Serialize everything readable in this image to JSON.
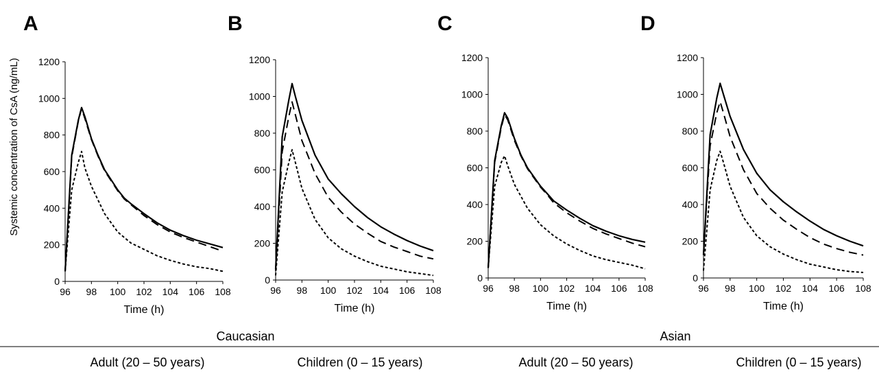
{
  "footer": {
    "group_left": "Caucasian",
    "group_right": "Asian",
    "subgroups": [
      "Adult  (20 – 50 years)",
      "Children  (0 – 15 years)",
      "Adult  (20 – 50 years)",
      "Children  (0 – 15 years)"
    ]
  },
  "chart_data": [
    {
      "type": "line",
      "panel_label": "A",
      "xlabel": "Time (h)",
      "ylabel": "Systemic concentration of CsA (ng/mL)",
      "xlim": [
        96,
        108
      ],
      "ylim": [
        0,
        1200
      ],
      "xticks": [
        "96",
        "98",
        "100",
        "102",
        "104",
        "106",
        "108"
      ],
      "yticks": [
        "0",
        "200",
        "400",
        "600",
        "800",
        "1000",
        "1200"
      ],
      "series": [
        {
          "style": "solid",
          "x": [
            96,
            96.5,
            97,
            97.25,
            97.5,
            98,
            98.5,
            99,
            100,
            100.5,
            101,
            102,
            103,
            104,
            105,
            106,
            107,
            108
          ],
          "y": [
            55,
            690,
            880,
            950,
            900,
            780,
            690,
            610,
            500,
            455,
            425,
            370,
            320,
            280,
            250,
            225,
            205,
            185
          ]
        },
        {
          "style": "long-dash",
          "x": [
            96,
            96.5,
            97,
            97.25,
            97.5,
            98,
            98.5,
            99,
            100,
            100.5,
            101,
            102,
            103,
            104,
            105,
            106,
            107,
            108
          ],
          "y": [
            55,
            680,
            875,
            945,
            890,
            775,
            685,
            605,
            495,
            450,
            420,
            360,
            310,
            270,
            240,
            215,
            190,
            165
          ]
        },
        {
          "style": "short-dash",
          "x": [
            96,
            96.5,
            97,
            97.25,
            97.5,
            98,
            99,
            100,
            101,
            102,
            103,
            104,
            105,
            106,
            107,
            108
          ],
          "y": [
            55,
            500,
            650,
            710,
            620,
            520,
            370,
            270,
            210,
            175,
            140,
            115,
            95,
            80,
            70,
            55
          ]
        }
      ]
    },
    {
      "type": "line",
      "panel_label": "B",
      "xlabel": "Time (h)",
      "xlim": [
        96,
        108
      ],
      "ylim": [
        0,
        1200
      ],
      "xticks": [
        "96",
        "98",
        "100",
        "102",
        "104",
        "106",
        "108"
      ],
      "yticks": [
        "0",
        "200",
        "400",
        "600",
        "800",
        "1000",
        "1200"
      ],
      "series": [
        {
          "style": "solid",
          "x": [
            96,
            96.5,
            97,
            97.25,
            97.5,
            98,
            99,
            100,
            101,
            102,
            103,
            104,
            105,
            106,
            107,
            108
          ],
          "y": [
            60,
            780,
            980,
            1070,
            1000,
            870,
            680,
            550,
            470,
            400,
            340,
            290,
            250,
            215,
            185,
            160
          ]
        },
        {
          "style": "long-dash",
          "x": [
            96,
            96.5,
            97,
            97.25,
            97.5,
            98,
            99,
            100,
            101,
            102,
            103,
            104,
            105,
            106,
            107,
            108
          ],
          "y": [
            50,
            700,
            890,
            970,
            900,
            760,
            580,
            450,
            370,
            305,
            255,
            210,
            180,
            155,
            130,
            115
          ]
        },
        {
          "style": "short-dash",
          "x": [
            96,
            96.5,
            97,
            97.25,
            97.5,
            98,
            99,
            100,
            101,
            102,
            103,
            104,
            105,
            106,
            107,
            108
          ],
          "y": [
            25,
            480,
            640,
            710,
            640,
            500,
            330,
            230,
            170,
            130,
            100,
            75,
            60,
            45,
            35,
            25
          ]
        }
      ]
    },
    {
      "type": "line",
      "panel_label": "C",
      "xlabel": "Time (h)",
      "xlim": [
        96,
        108
      ],
      "ylim": [
        0,
        1200
      ],
      "xticks": [
        "96",
        "98",
        "100",
        "102",
        "104",
        "106",
        "108"
      ],
      "yticks": [
        "0",
        "200",
        "400",
        "600",
        "800",
        "1000",
        "1200"
      ],
      "series": [
        {
          "style": "solid",
          "x": [
            96,
            96.5,
            97,
            97.25,
            97.5,
            98,
            98.5,
            99,
            100,
            100.5,
            101,
            102,
            103,
            104,
            105,
            106,
            107,
            108
          ],
          "y": [
            55,
            640,
            830,
            900,
            870,
            760,
            670,
            600,
            500,
            460,
            420,
            370,
            325,
            285,
            255,
            230,
            210,
            195
          ]
        },
        {
          "style": "long-dash",
          "x": [
            96,
            96.5,
            97,
            97.25,
            97.5,
            98,
            98.5,
            99,
            100,
            100.5,
            101,
            102,
            103,
            104,
            105,
            106,
            107,
            108
          ],
          "y": [
            55,
            630,
            820,
            890,
            860,
            750,
            665,
            595,
            495,
            455,
            410,
            355,
            310,
            270,
            240,
            215,
            190,
            170
          ]
        },
        {
          "style": "short-dash",
          "x": [
            96,
            96.5,
            97,
            97.25,
            97.5,
            98,
            99,
            100,
            101,
            102,
            103,
            104,
            105,
            106,
            107,
            108
          ],
          "y": [
            55,
            500,
            630,
            665,
            610,
            510,
            380,
            290,
            230,
            185,
            150,
            120,
            100,
            85,
            70,
            50
          ]
        }
      ]
    },
    {
      "type": "line",
      "panel_label": "D",
      "xlabel": "Time (h)",
      "xlim": [
        96,
        108
      ],
      "ylim": [
        0,
        1200
      ],
      "xticks": [
        "96",
        "98",
        "100",
        "102",
        "104",
        "106",
        "108"
      ],
      "yticks": [
        "0",
        "200",
        "400",
        "600",
        "800",
        "1000",
        "1200"
      ],
      "series": [
        {
          "style": "solid",
          "x": [
            96,
            96.5,
            97,
            97.25,
            97.5,
            98,
            99,
            100,
            101,
            102,
            103,
            104,
            105,
            106,
            107,
            108
          ],
          "y": [
            125,
            780,
            980,
            1060,
            1000,
            880,
            700,
            570,
            480,
            415,
            360,
            310,
            265,
            230,
            200,
            175
          ]
        },
        {
          "style": "long-dash",
          "x": [
            96,
            96.5,
            97,
            97.25,
            97.5,
            98,
            99,
            100,
            101,
            102,
            103,
            104,
            105,
            106,
            107,
            108
          ],
          "y": [
            125,
            720,
            900,
            960,
            900,
            770,
            590,
            460,
            380,
            315,
            265,
            220,
            185,
            160,
            140,
            125
          ]
        },
        {
          "style": "short-dash",
          "x": [
            96,
            96.5,
            97,
            97.25,
            97.5,
            98,
            99,
            100,
            101,
            102,
            103,
            104,
            105,
            106,
            107,
            108
          ],
          "y": [
            40,
            480,
            640,
            690,
            630,
            500,
            330,
            230,
            170,
            130,
            100,
            75,
            60,
            45,
            35,
            30
          ]
        }
      ]
    }
  ]
}
